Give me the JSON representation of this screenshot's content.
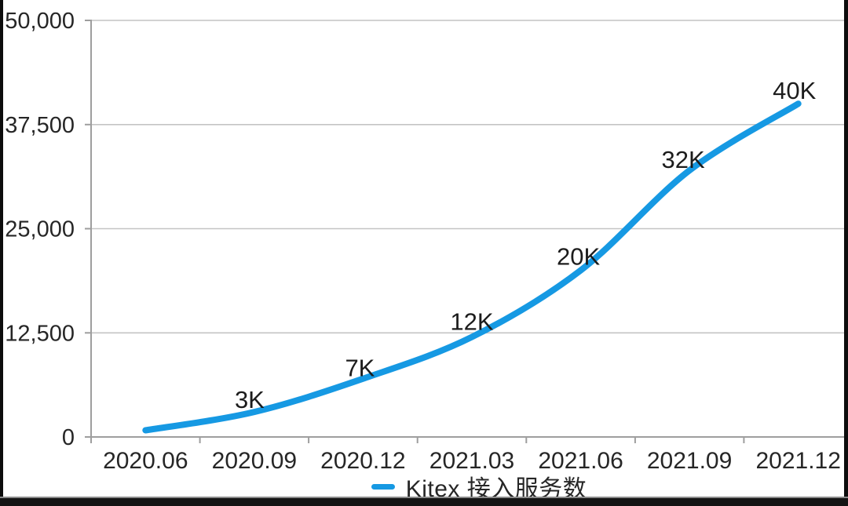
{
  "chart_data": {
    "type": "line",
    "title": "",
    "categories": [
      "2020.06",
      "2020.09",
      "2020.12",
      "2021.03",
      "2021.06",
      "2021.09",
      "2021.12"
    ],
    "series": [
      {
        "name": "Kitex 接入服务数",
        "color": "#1699E3",
        "values": [
          800,
          3000,
          7000,
          12000,
          20000,
          32000,
          40000
        ],
        "point_labels": [
          "",
          "3K",
          "7K",
          "12K",
          "20K",
          "32K",
          "40K"
        ]
      }
    ],
    "xlabel": "",
    "ylabel": "",
    "ylim": [
      0,
      50000
    ],
    "y_ticks": [
      {
        "value": 0,
        "label": "0"
      },
      {
        "value": 12500,
        "label": "12,500"
      },
      {
        "value": 25000,
        "label": "25,000"
      },
      {
        "value": 37500,
        "label": "37,500"
      },
      {
        "value": 50000,
        "label": "50,000"
      }
    ],
    "grid": "horizontal gridlines on",
    "legend_position": "bottom-center",
    "colors": {
      "line": "#1699E3",
      "grid": "#c4c4c4",
      "axis": "#9e9e9e",
      "text": "#262626"
    }
  }
}
